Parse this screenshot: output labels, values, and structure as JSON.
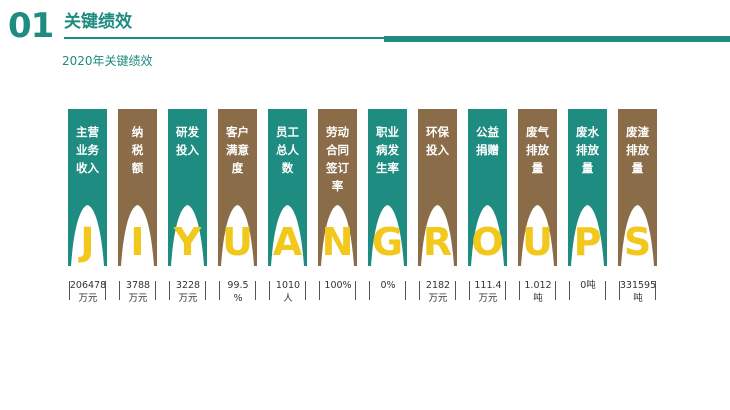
{
  "header": {
    "number": "01",
    "title": "关键绩效",
    "subtitle": "2020年关键绩效"
  },
  "colors": {
    "teal": "#1e8c80",
    "brown": "#8b6c48",
    "yellow": "#f2c81c"
  },
  "cards": [
    {
      "label": "主营\n业务\n收入",
      "letter": "J",
      "value": "206478",
      "unit": "万元",
      "color": "#1e8c80"
    },
    {
      "label": "纳\n税\n额",
      "letter": "I",
      "value": "3788",
      "unit": "万元",
      "color": "#8b6c48"
    },
    {
      "label": "研发\n投入",
      "letter": "Y",
      "value": "3228",
      "unit": "万元",
      "color": "#1e8c80"
    },
    {
      "label": "客户\n满意\n度",
      "letter": "U",
      "value": "99.5",
      "unit": "%",
      "color": "#8b6c48"
    },
    {
      "label": "员工\n总人\n数",
      "letter": "A",
      "value": "1010",
      "unit": "人",
      "color": "#1e8c80"
    },
    {
      "label": "劳动\n合同\n签订\n率",
      "letter": "N",
      "value": "100%",
      "unit": "",
      "color": "#8b6c48"
    },
    {
      "label": "职业\n病发\n生率",
      "letter": "G",
      "value": "0%",
      "unit": "",
      "color": "#1e8c80"
    },
    {
      "label": "环保\n投入",
      "letter": "R",
      "value": "2182",
      "unit": "万元",
      "color": "#8b6c48"
    },
    {
      "label": "公益\n捐赠",
      "letter": "O",
      "value": "111.4",
      "unit": "万元",
      "color": "#1e8c80"
    },
    {
      "label": "废气\n排放\n量",
      "letter": "U",
      "value": "1.012",
      "unit": "吨",
      "color": "#8b6c48"
    },
    {
      "label": "废水\n排放\n量",
      "letter": "P",
      "value": "0吨",
      "unit": "",
      "color": "#1e8c80"
    },
    {
      "label": "废渣\n排放\n量",
      "letter": "S",
      "value": "331595",
      "unit": "吨",
      "color": "#8b6c48"
    }
  ]
}
